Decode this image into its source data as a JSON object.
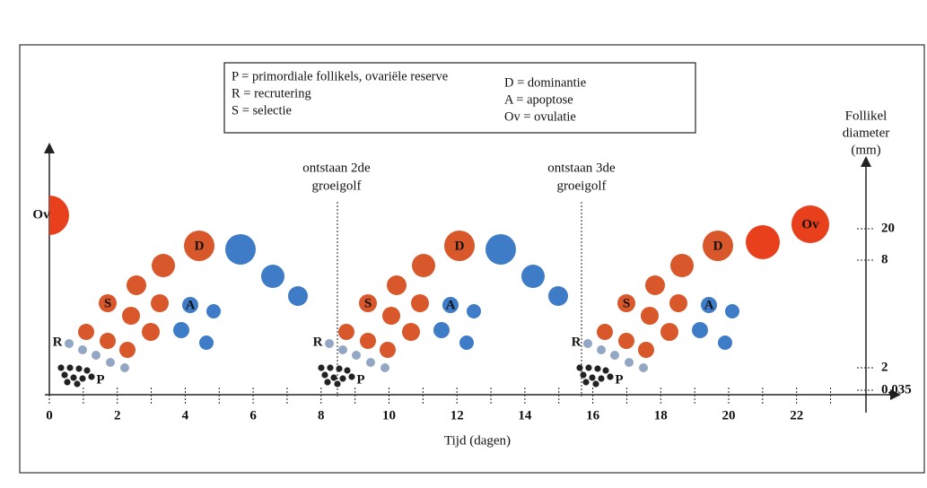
{
  "legend": {
    "left": [
      "P = primordiale follikels, ovariële reserve",
      "R = recrutering",
      "S = selectie"
    ],
    "right": [
      "D = dominantie",
      "A = apoptose",
      "Ov = ovulatie"
    ]
  },
  "x_axis": {
    "label": "Tijd (dagen)",
    "ticks": [
      "0",
      "2",
      "4",
      "6",
      "8",
      "10",
      "12",
      "14",
      "16",
      "18",
      "20",
      "22"
    ]
  },
  "y_axis": {
    "label": [
      "Follikel",
      "diameter",
      "(mm)"
    ],
    "ticks": [
      "20",
      "8",
      "2",
      "0,035"
    ]
  },
  "annotations": [
    [
      "ontstaan 2de",
      "groeigolf"
    ],
    [
      "ontstaan 3de",
      "groeigolf"
    ]
  ],
  "markers": {
    "ovulation_start": "Ov",
    "ovulation_end": "Ov",
    "waves": [
      {
        "R": "R",
        "P": "P",
        "S": "S",
        "A": "A",
        "D": "D"
      },
      {
        "R": "R",
        "P": "P",
        "S": "S",
        "A": "A",
        "D": "D"
      },
      {
        "R": "R",
        "P": "P",
        "S": "S",
        "A": "A",
        "D": "D"
      }
    ]
  }
}
